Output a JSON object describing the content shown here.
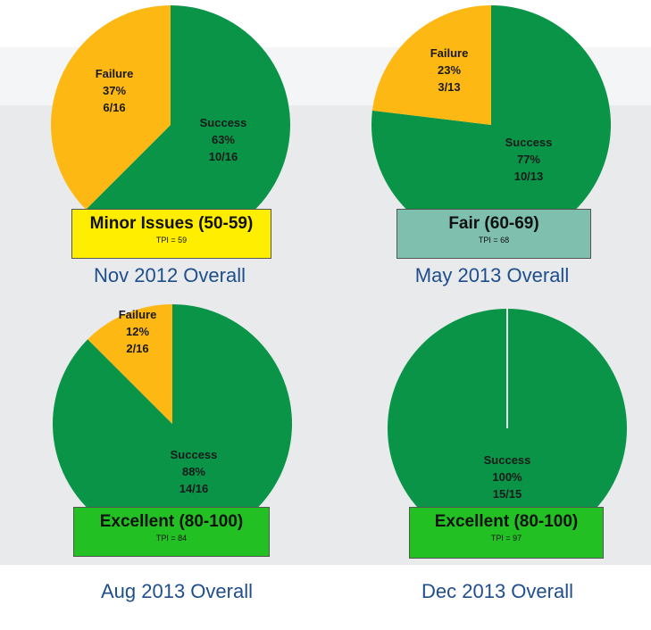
{
  "colors": {
    "success": "#0a9447",
    "failure": "#fdb813",
    "minor_issues": "#ffee00",
    "fair": "#7fbfae",
    "excellent": "#22c023",
    "caption": "#1f4e8c"
  },
  "panels": [
    {
      "caption": "Nov 2012 Overall",
      "rating": "Minor Issues (50-59)",
      "tpi": "TPI = 59",
      "rating_color": "minor_issues",
      "failure": {
        "name": "Failure",
        "pct": "37%",
        "frac": "6/16"
      },
      "success": {
        "name": "Success",
        "pct": "63%",
        "frac": "10/16"
      }
    },
    {
      "caption": "May 2013 Overall",
      "rating": "Fair (60-69)",
      "tpi": "TPI = 68",
      "rating_color": "fair",
      "failure": {
        "name": "Failure",
        "pct": "23%",
        "frac": "3/13"
      },
      "success": {
        "name": "Success",
        "pct": "77%",
        "frac": "10/13"
      }
    },
    {
      "caption": "Aug 2013 Overall",
      "rating": "Excellent (80-100)",
      "tpi": "TPI = 84",
      "rating_color": "excellent",
      "failure": {
        "name": "Failure",
        "pct": "12%",
        "frac": "2/16"
      },
      "success": {
        "name": "Success",
        "pct": "88%",
        "frac": "14/16"
      }
    },
    {
      "caption": "Dec 2013 Overall",
      "rating": "Excellent (80-100)",
      "tpi": "TPI = 97",
      "rating_color": "excellent",
      "success": {
        "name": "Success",
        "pct": "100%",
        "frac": "15/15"
      }
    }
  ],
  "chart_data": [
    {
      "type": "pie",
      "title": "Nov 2012 Overall",
      "categories": [
        "Failure",
        "Success"
      ],
      "values": [
        6,
        10
      ],
      "percent": [
        37,
        63
      ],
      "tpi": 59,
      "rating": "Minor Issues (50-59)"
    },
    {
      "type": "pie",
      "title": "May 2013 Overall",
      "categories": [
        "Failure",
        "Success"
      ],
      "values": [
        3,
        10
      ],
      "percent": [
        23,
        77
      ],
      "tpi": 68,
      "rating": "Fair (60-69)"
    },
    {
      "type": "pie",
      "title": "Aug 2013 Overall",
      "categories": [
        "Failure",
        "Success"
      ],
      "values": [
        2,
        14
      ],
      "percent": [
        12,
        88
      ],
      "tpi": 84,
      "rating": "Excellent (80-100)"
    },
    {
      "type": "pie",
      "title": "Dec 2013 Overall",
      "categories": [
        "Success"
      ],
      "values": [
        15
      ],
      "percent": [
        100
      ],
      "tpi": 97,
      "rating": "Excellent (80-100)"
    }
  ]
}
